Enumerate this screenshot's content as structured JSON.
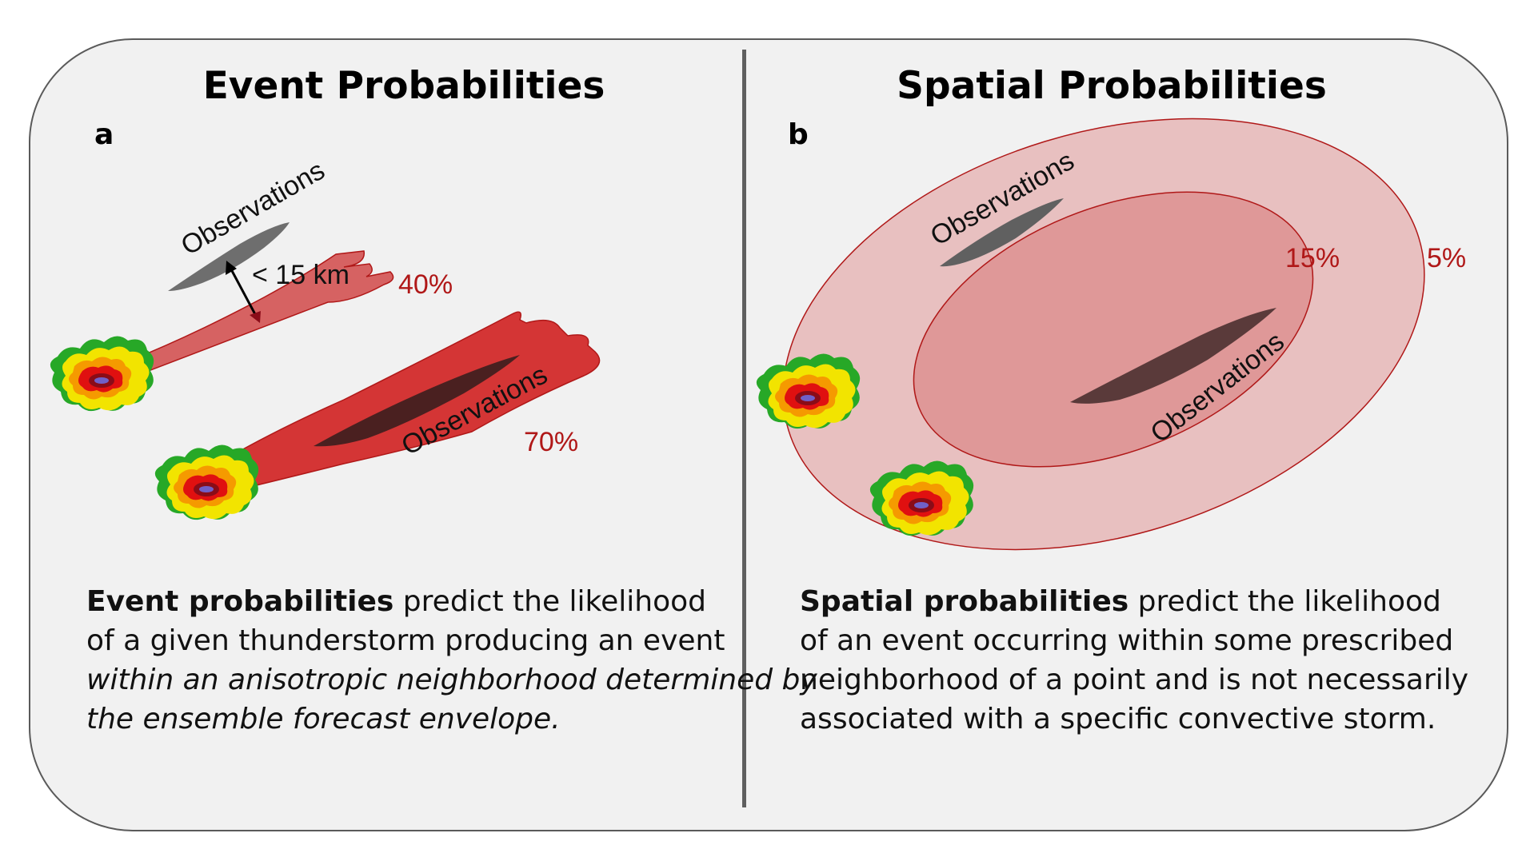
{
  "left": {
    "title": "Event Probabilities",
    "label": "a",
    "obs_upper": "Observations",
    "obs_lower": "Observations",
    "distance": "< 15 km",
    "pct_upper": "40%",
    "pct_lower": "70%",
    "desc": {
      "bold": "Event probabilities",
      "line1_rest": " predict the likelihood",
      "line2": "of a given thunderstorm producing an event",
      "line3": "within an anisotropic neighborhood determined by",
      "line4": "the ensemble forecast envelope."
    }
  },
  "right": {
    "title": "Spatial Probabilities",
    "label": "b",
    "obs_upper": "Observations",
    "obs_lower": "Observations",
    "pct_inner": "15%",
    "pct_outer": "5%",
    "desc": {
      "bold": "Spatial probabilities",
      "line1_rest": " predict the likelihood",
      "line2": "of an event occurring within some prescribed",
      "line3": "neighborhood of a point and is not necessarily",
      "line4": "associated with a specific convective storm."
    }
  },
  "colors": {
    "panel_bg": "#f1f1f1",
    "swath_40": "#d66262",
    "swath_70": "#d43535",
    "outer_ellipse": "#e8c0c0",
    "inner_ellipse": "#df9898",
    "outline_red": "#b01818",
    "obs_grey": "#6e6e6e",
    "obs_dark": "#4a2020",
    "pct_text": "#b01818"
  }
}
